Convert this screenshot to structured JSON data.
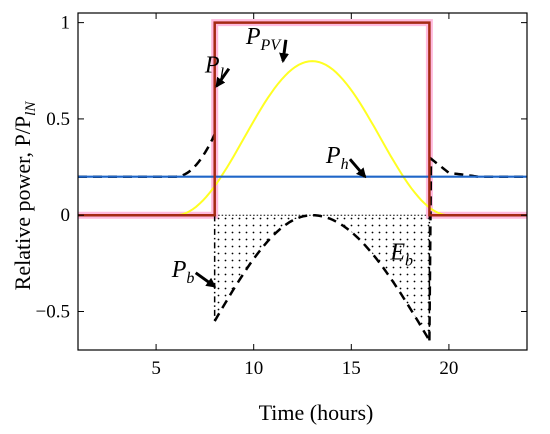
{
  "chart_data": {
    "type": "line",
    "xlabel": "Time (hours)",
    "ylabel": "Relative power, P/P",
    "ylabel_sub": "lN",
    "xlim": [
      1,
      24
    ],
    "ylim": [
      -0.7,
      1.05
    ],
    "xticks": [
      5,
      10,
      15,
      20
    ],
    "yticks": [
      -0.5,
      0,
      0.5,
      1
    ],
    "ytick_labels": [
      "−0.5",
      "0",
      "0.5",
      "1"
    ],
    "grid": false,
    "colors": {
      "P_l": "#a52a14",
      "P_l_halo": "#ff8cc8",
      "P_PV": "#ffff22",
      "P_h": "#1f66c8",
      "P_b": "#000000",
      "zero": "#000000"
    },
    "series": [
      {
        "key": "P_l",
        "x": [
          1,
          8,
          8,
          19,
          19,
          24
        ],
        "y": [
          0,
          0,
          1,
          1,
          0,
          0
        ]
      },
      {
        "key": "P_h",
        "x": [
          1,
          24
        ],
        "y": [
          0.2,
          0.2
        ]
      },
      {
        "key": "P_PV",
        "x": [
          1,
          6,
          13,
          20,
          24
        ],
        "y": [
          0,
          0,
          0.8,
          0,
          0
        ],
        "shape": "bell"
      },
      {
        "key": "P_b",
        "x": [
          1,
          6,
          7,
          8,
          8,
          13,
          19,
          19,
          20,
          24
        ],
        "y": [
          0.2,
          0.2,
          0.3,
          0.42,
          -0.55,
          0,
          -0.65,
          0.3,
          0.22,
          0.2
        ],
        "style": "dashed"
      }
    ],
    "annotations": [
      {
        "base": "P",
        "sub": "l",
        "x": 7.5,
        "y": 0.74,
        "arrow_to": [
          8.1,
          0.67
        ]
      },
      {
        "base": "P",
        "sub": "PV",
        "x": 9.6,
        "y": 0.89,
        "arrow_to": [
          11.5,
          0.8
        ]
      },
      {
        "base": "P",
        "sub": "h",
        "x": 13.7,
        "y": 0.27,
        "arrow_to": [
          15.7,
          0.2
        ]
      },
      {
        "base": "P",
        "sub": "b",
        "x": 5.8,
        "y": -0.32,
        "arrow_to": [
          8.0,
          -0.37
        ]
      },
      {
        "base": "E",
        "sub": "b",
        "x": 17.0,
        "y": -0.23,
        "arrow_to": null
      }
    ]
  }
}
